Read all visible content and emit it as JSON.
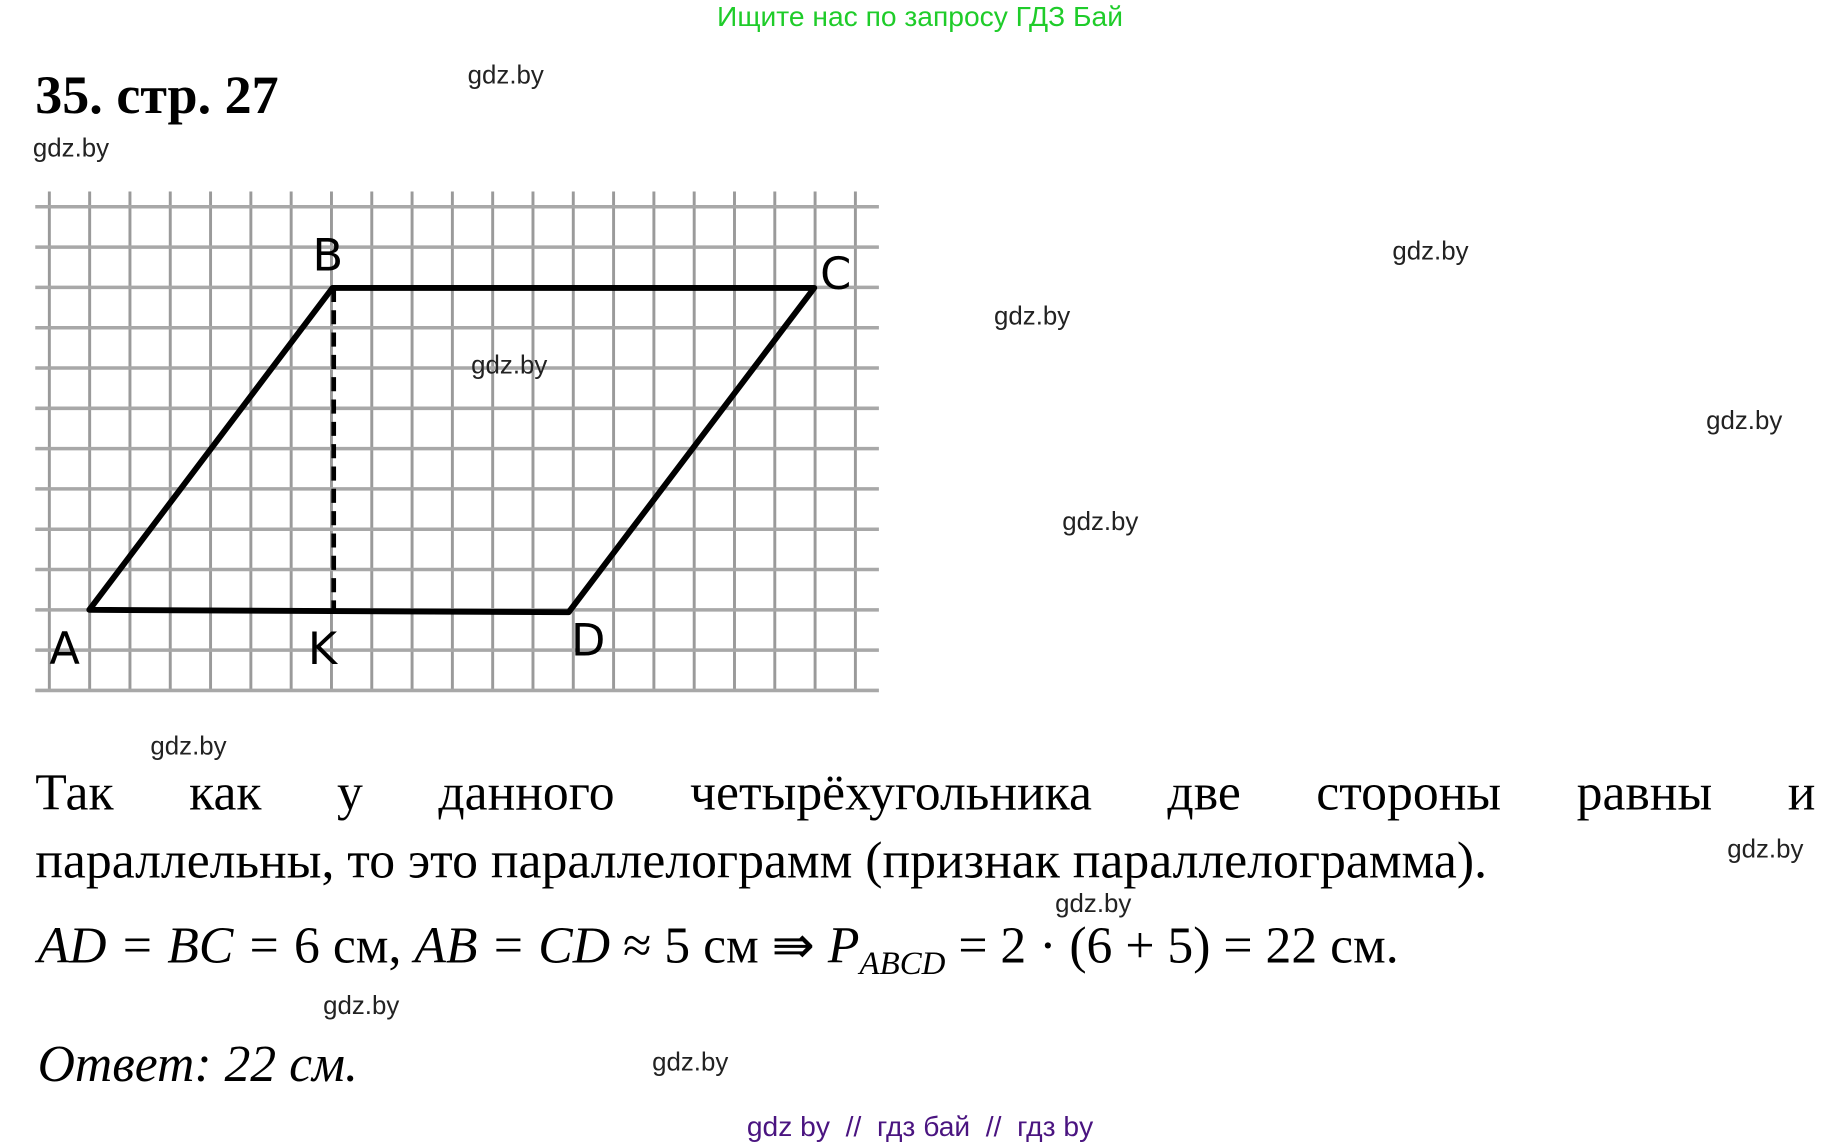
{
  "header_banner": "Ищите нас по запросу ГДЗ Бай",
  "title": "35. стр. 27",
  "figure": {
    "labels": {
      "A": "A",
      "B": "B",
      "C": "C",
      "D": "D",
      "K": "K"
    }
  },
  "solution": {
    "line1": "Так как у данного четырёхугольника две стороны равны и",
    "line2": "параллельны, то это параллелограмм (признак параллелограмма).",
    "math": {
      "part1": "AD = BC = ",
      "part2": "6 см, ",
      "part3": "AB = CD ",
      "part4": "≈ 5 см ⇛ ",
      "p": "P",
      "sub": "ABCD",
      "part5": " = 2 · (6 + 5) = 22 см."
    }
  },
  "answer": "Ответ: 22 см.",
  "watermark": "gdz.by",
  "footer": "gdz by  //  гдз бай  //  гдз by",
  "colors": {
    "banner": "#1fcc2a",
    "footer": "#4a1480"
  }
}
